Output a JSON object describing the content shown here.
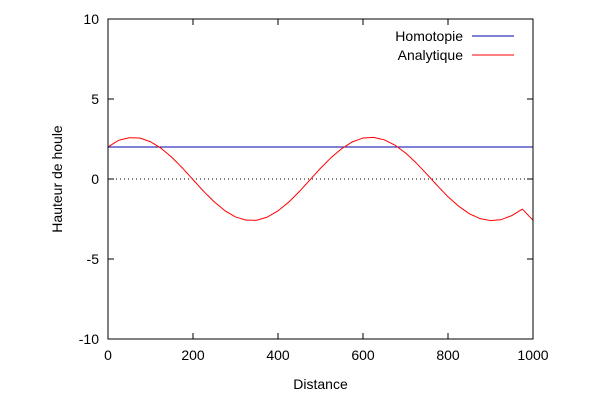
{
  "chart_data": {
    "type": "line",
    "title": "",
    "xlabel": "Distance",
    "ylabel": "Hauteur de houle",
    "xlim": [
      0,
      1000
    ],
    "ylim": [
      -10,
      10
    ],
    "xticks": [
      0,
      200,
      400,
      600,
      800,
      1000
    ],
    "yticks": [
      -10,
      -5,
      0,
      5,
      10
    ],
    "xtick_labels": [
      "0",
      "200",
      "400",
      "600",
      "800",
      "1000"
    ],
    "ytick_labels": [
      "-10",
      "-5",
      "0",
      "5",
      "10"
    ],
    "grid": false,
    "zero_line": "dotted",
    "legend_position": "top-right",
    "series": [
      {
        "name": "Homotopie",
        "color": "#0000aa",
        "x": [
          0,
          100,
          200,
          300,
          400,
          500,
          600,
          700,
          800,
          900,
          1000
        ],
        "y": [
          2,
          2,
          2,
          2,
          2,
          2,
          2,
          2,
          2,
          2,
          2
        ]
      },
      {
        "name": "Analytique",
        "color": "#ff0000",
        "x": [
          0,
          25,
          50,
          75,
          100,
          125,
          150,
          175,
          200,
          225,
          250,
          275,
          300,
          325,
          350,
          375,
          400,
          425,
          450,
          475,
          500,
          525,
          550,
          575,
          600,
          625,
          650,
          675,
          700,
          725,
          750,
          775,
          800,
          825,
          850,
          875,
          900,
          925,
          950,
          975,
          1000
        ],
        "y": [
          2.0,
          2.42,
          2.58,
          2.56,
          2.33,
          1.92,
          1.36,
          0.69,
          -0.04,
          -0.77,
          -1.43,
          -1.98,
          -2.37,
          -2.57,
          -2.58,
          -2.38,
          -1.99,
          -1.45,
          -0.79,
          -0.06,
          0.67,
          1.34,
          1.9,
          2.32,
          2.56,
          2.6,
          2.45,
          2.12,
          1.63,
          1.01,
          0.31,
          -0.42,
          -1.11,
          -1.7,
          -2.17,
          -2.47,
          -2.6,
          -2.54,
          -2.29,
          -1.88,
          -2.58
        ]
      }
    ]
  }
}
